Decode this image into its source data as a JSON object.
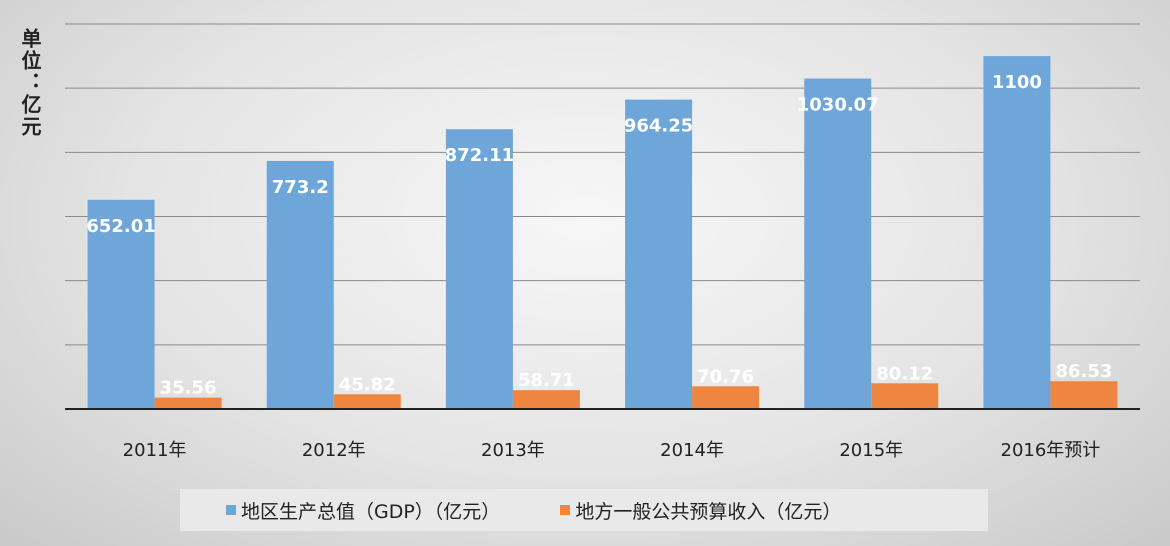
{
  "chart_data": {
    "type": "bar",
    "title": "",
    "ylabel": "单位：亿元",
    "xlabel": "",
    "categories": [
      "2011年",
      "2012年",
      "2013年",
      "2014年",
      "2015年",
      "2016年预计"
    ],
    "series": [
      {
        "name": "地区生产总值（GDP）（亿元）",
        "values": [
          652.01,
          773.2,
          872.11,
          964.25,
          1030.07,
          1100
        ],
        "labels": [
          "652.01",
          "773.2",
          "872.11",
          "964.25",
          "1030.07",
          "1100"
        ],
        "color": "#6fa6da"
      },
      {
        "name": "地方一般公共预算收入（亿元）",
        "values": [
          35.56,
          45.82,
          58.71,
          70.76,
          80.12,
          86.53
        ],
        "labels": [
          "35.56",
          "45.82",
          "58.71",
          "70.76",
          "80.12",
          "86.53"
        ],
        "color": "#ee8540"
      }
    ],
    "ylim": [
      0,
      1200
    ],
    "grid": true,
    "legend": "bottom"
  }
}
